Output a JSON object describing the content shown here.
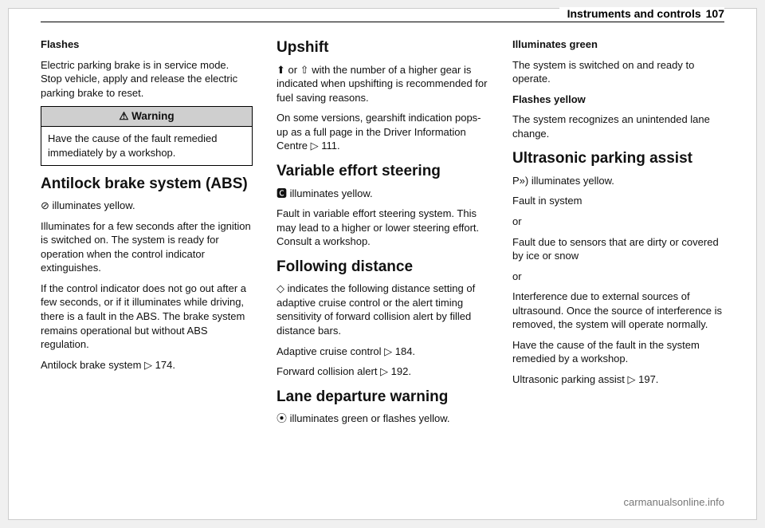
{
  "header": {
    "section": "Instruments and controls",
    "pagenum": "107"
  },
  "col1": {
    "flashes_head": "Flashes",
    "flashes_body": "Electric parking brake is in service mode. Stop vehicle, apply and release the electric parking brake to reset.",
    "warning_title": "⚠ Warning",
    "warning_body": "Have the cause of the fault remedied immediately by a workshop.",
    "abs_head": "Antilock brake system (ABS)",
    "abs_sym": "⊘",
    "abs_sym_line": " illuminates yellow.",
    "abs_p1": "Illuminates for a few seconds after the ignition is switched on. The system is ready for operation when the control indicator extinguishes.",
    "abs_p2": "If the control indicator does not go out after a few seconds, or if it illuminates while driving, there is a fault in the ABS. The brake system remains operational but without ABS regulation.",
    "abs_p3": "Antilock brake system ▷ 174."
  },
  "col2": {
    "upshift_head": "Upshift",
    "upshift_sym": "⬆ or ⇧",
    "upshift_body": " with the number of a higher gear is indicated when upshifting is recommended for fuel saving reasons.",
    "upshift_p2": "On some versions, gearshift indication pops-up as a full page in the Driver Information Centre ▷ 111.",
    "ves_head": "Variable effort steering",
    "ves_sym": "🅲",
    "ves_sym_line": " illuminates yellow.",
    "ves_p1": "Fault in variable effort steering system. This may lead to a higher or lower steering effort. Consult a workshop.",
    "fd_head": "Following distance",
    "fd_sym": "◇",
    "fd_body": " indicates the following distance setting of adaptive cruise control or the alert timing sensitivity of forward collision alert by filled distance bars.",
    "fd_p1": "Adaptive cruise control ▷ 184.",
    "fd_p2": "Forward collision alert ▷ 192.",
    "ldw_head": "Lane departure warning",
    "ldw_sym": "⦿",
    "ldw_sym_line": " illuminates green or flashes yellow."
  },
  "col3": {
    "ig_head": "Illuminates green",
    "ig_body": "The system is switched on and ready to operate.",
    "fy_head": "Flashes yellow",
    "fy_body": "The system recognizes an unintended lane change.",
    "upa_head": "Ultrasonic parking assist",
    "upa_sym": "P»)",
    "upa_sym_line": " illuminates yellow.",
    "upa_p1": "Fault in system",
    "upa_or1": "or",
    "upa_p2": "Fault due to sensors that are dirty or covered by ice or snow",
    "upa_or2": "or",
    "upa_p3": "Interference due to external sources of ultrasound. Once the source of interference is removed, the system will operate normally.",
    "upa_p4": "Have the cause of the fault in the system remedied by a workshop.",
    "upa_p5": "Ultrasonic parking assist ▷ 197."
  },
  "footer": {
    "url": "carmanualsonline.info"
  }
}
